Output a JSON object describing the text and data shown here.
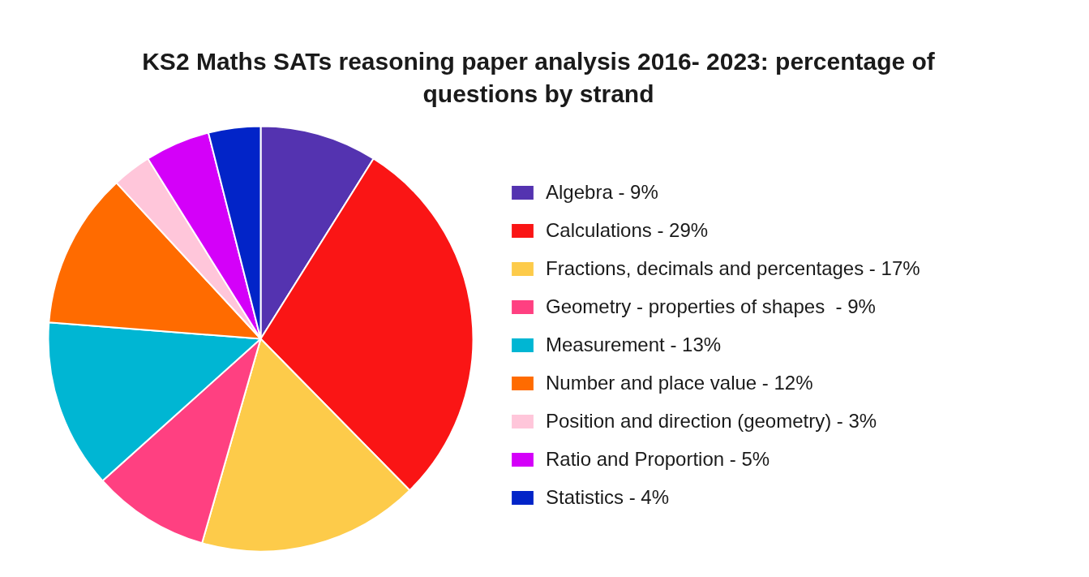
{
  "chart_data": {
    "type": "pie",
    "title": "KS2 Maths SATs reasoning paper analysis 2016- 2023: percentage of questions by strand",
    "categories": [
      "Algebra - 9%",
      "Calculations - 29%",
      "Fractions, decimals and percentages - 17%",
      "Geometry - properties of shapes  - 9%",
      "Measurement - 13%",
      "Number and place value - 12%",
      "Position and direction (geometry) - 3%",
      "Ratio and Proportion - 5%",
      "Statistics - 4%"
    ],
    "values": [
      9,
      29,
      17,
      9,
      13,
      12,
      3,
      5,
      4
    ],
    "colors": [
      "#5433b0",
      "#fa1515",
      "#fdcb4a",
      "#ff4081",
      "#00b6d3",
      "#ff6b00",
      "#ffc6da",
      "#d400f9",
      "#0224c8"
    ],
    "legend": "right"
  }
}
